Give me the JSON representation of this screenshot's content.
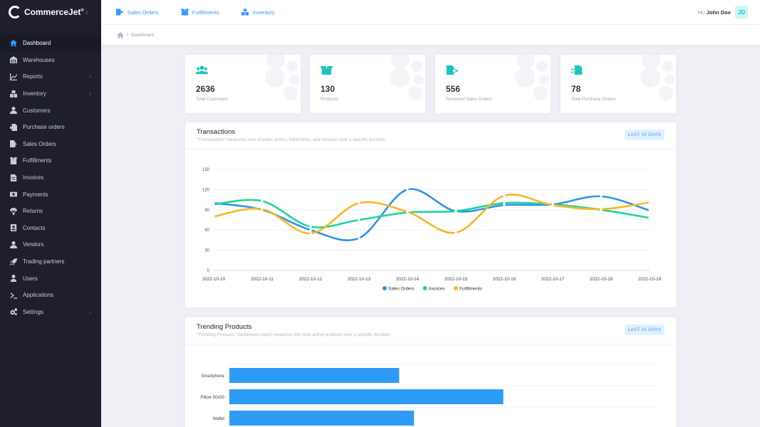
{
  "app": {
    "name": "CommerceJet",
    "trademark": "®"
  },
  "sidebar": {
    "items": [
      {
        "label": "Dashboard",
        "icon": "home-icon",
        "active": true
      },
      {
        "label": "Warehouses",
        "icon": "warehouse-icon"
      },
      {
        "label": "Reports",
        "icon": "chart-icon",
        "chevron": true
      },
      {
        "label": "Inventory",
        "icon": "inventory-icon",
        "chevron": true
      },
      {
        "label": "Customers",
        "icon": "users-icon"
      },
      {
        "label": "Purchase orders",
        "icon": "purchase-order-icon"
      },
      {
        "label": "Sales Orders",
        "icon": "sales-order-icon"
      },
      {
        "label": "Fulfillments",
        "icon": "box-icon"
      },
      {
        "label": "Invoices",
        "icon": "invoice-icon"
      },
      {
        "label": "Payments",
        "icon": "money-icon"
      },
      {
        "label": "Returns",
        "icon": "parachute-icon"
      },
      {
        "label": "Contacts",
        "icon": "contact-icon"
      },
      {
        "label": "Vendors",
        "icon": "vendor-icon"
      },
      {
        "label": "Trading partners",
        "icon": "rocket-icon"
      },
      {
        "label": "Users",
        "icon": "user-icon"
      },
      {
        "label": "Applications",
        "icon": "terminal-icon"
      },
      {
        "label": "Settings",
        "icon": "gears-icon",
        "chevron": true
      }
    ]
  },
  "topnav": {
    "sales_orders": "Sales Orders",
    "fulfillments": "Fulfillments",
    "inventory": "Inventory",
    "greeting": "Hi,",
    "user_name": "John Doe",
    "avatar_initials": "JD"
  },
  "breadcrumb": {
    "current": "Dashboard"
  },
  "stats": [
    {
      "value": "2636",
      "label": "Total Customers",
      "icon": "users-icon"
    },
    {
      "value": "130",
      "label": "Products",
      "icon": "box-open-icon"
    },
    {
      "value": "556",
      "label": "Received Sales Orders",
      "icon": "file-export-icon"
    },
    {
      "value": "78",
      "label": "Total Purchase Orders",
      "icon": "file-import-icon"
    }
  ],
  "transactions": {
    "title": "Transactions",
    "subtitle": "\"Transactions\" measures sum of sales orders, fulfillments, and invoices over a specific duration.",
    "badge": "LAST 10 DAYS"
  },
  "trending": {
    "title": "Trending Products",
    "subtitle": "\"Trending Products\" dashboard report measures the most active products over a specific duration.",
    "badge": "LAST 10 DAYS"
  },
  "colors": {
    "accent": "#3699ff",
    "teal": "#1bc5bd",
    "sales": "#2f93e8",
    "invoices": "#1fd49c",
    "fulfillments": "#f6b825",
    "bar": "#2e9bf7"
  },
  "chart_data": [
    {
      "type": "line",
      "x": [
        "2022-10-10",
        "2022-10-11",
        "2022-10-12",
        "2022-10-13",
        "2022-10-14",
        "2022-10-15",
        "2022-10-16",
        "2022-10-17",
        "2022-10-18",
        "2022-10-19"
      ],
      "ylim": [
        0,
        150
      ],
      "yticks": [
        0,
        30,
        60,
        90,
        120,
        150
      ],
      "grid": true,
      "legend": "bottom",
      "series": [
        {
          "name": "Sales Orders",
          "values": [
            100,
            90,
            60,
            48,
            120,
            88,
            97,
            98,
            110,
            89
          ]
        },
        {
          "name": "Invoices",
          "values": [
            98,
            103,
            65,
            75,
            86,
            88,
            100,
            98,
            90,
            78
          ]
        },
        {
          "name": "Fulfillments",
          "values": [
            80,
            91,
            55,
            100,
            87,
            56,
            111,
            97,
            91,
            101
          ]
        }
      ]
    },
    {
      "type": "bar",
      "orientation": "horizontal",
      "categories": [
        "Smartphone",
        "Pillow 50x50",
        "Wallet"
      ],
      "values": [
        310,
        500,
        337
      ]
    }
  ]
}
